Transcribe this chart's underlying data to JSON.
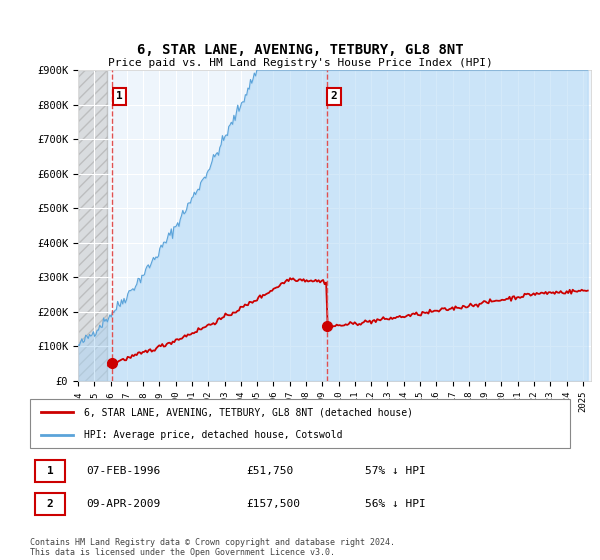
{
  "title": "6, STAR LANE, AVENING, TETBURY, GL8 8NT",
  "subtitle": "Price paid vs. HM Land Registry's House Price Index (HPI)",
  "ylabel_ticks": [
    "£0",
    "£100K",
    "£200K",
    "£300K",
    "£400K",
    "£500K",
    "£600K",
    "£700K",
    "£800K",
    "£900K"
  ],
  "ylim": [
    0,
    900000
  ],
  "xlim_start": 1994.0,
  "xlim_end": 2025.5,
  "hpi_fill_color": "#aad4f5",
  "hpi_line_color": "#5ba3d9",
  "property_color": "#cc0000",
  "dashed_line_color": "#e05050",
  "purchase1_year": 1996.1,
  "purchase1_price": 51750,
  "purchase2_year": 2009.27,
  "purchase2_price": 157500,
  "legend_property": "6, STAR LANE, AVENING, TETBURY, GL8 8NT (detached house)",
  "legend_hpi": "HPI: Average price, detached house, Cotswold",
  "table_row1": [
    "1",
    "07-FEB-1996",
    "£51,750",
    "57% ↓ HPI"
  ],
  "table_row2": [
    "2",
    "09-APR-2009",
    "£157,500",
    "56% ↓ HPI"
  ],
  "footnote": "Contains HM Land Registry data © Crown copyright and database right 2024.\nThis data is licensed under the Open Government Licence v3.0.",
  "plot_bg_color": "#eef5fc"
}
